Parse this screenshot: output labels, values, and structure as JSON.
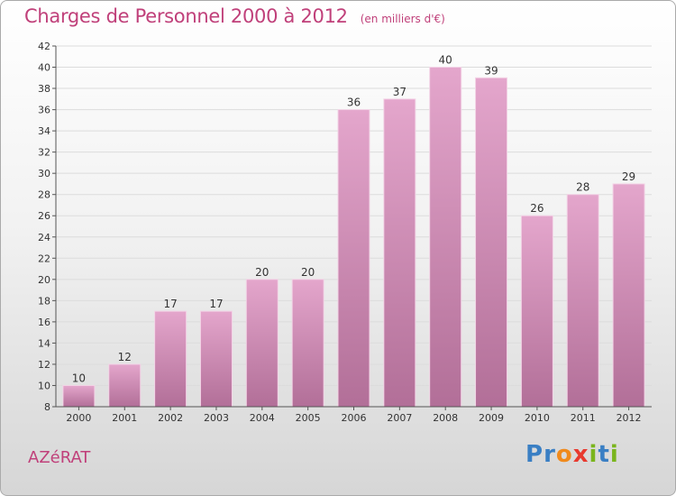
{
  "title": "Charges de Personnel 2000 à 2012",
  "subtitle": "(en milliers d'€)",
  "place": "AZéRAT",
  "logo": {
    "letters": [
      "P",
      "r",
      "o",
      "x",
      "i",
      "t",
      "i"
    ],
    "colors": [
      "#3a7fc4",
      "#3a7fc4",
      "#f08a1c",
      "#e83a2f",
      "#7ab51d",
      "#3a7fc4",
      "#7ab51d"
    ]
  },
  "colors": {
    "bar_light": "#e4a6cc",
    "bar_dark": "#b26f98",
    "text": "#c0407a"
  },
  "chart_data": {
    "type": "bar",
    "categories": [
      "2000",
      "2001",
      "2002",
      "2003",
      "2004",
      "2005",
      "2006",
      "2007",
      "2008",
      "2009",
      "2010",
      "2011",
      "2012"
    ],
    "values": [
      10,
      12,
      17,
      17,
      20,
      20,
      36,
      37,
      40,
      39,
      26,
      28,
      29
    ],
    "ylim": [
      8,
      42
    ],
    "yticks": [
      8,
      10,
      12,
      14,
      16,
      18,
      20,
      22,
      24,
      26,
      28,
      30,
      32,
      34,
      36,
      38,
      40,
      42
    ],
    "grid": true
  }
}
